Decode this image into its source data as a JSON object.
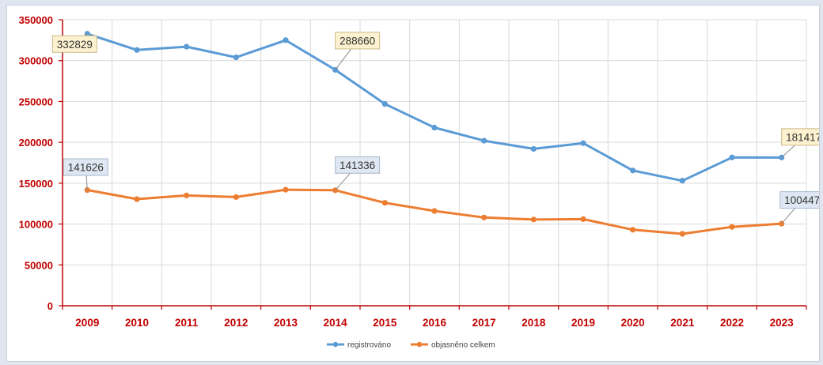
{
  "chart_data": {
    "type": "line",
    "title": "",
    "xlabel": "",
    "ylabel": "",
    "categories": [
      "2009",
      "2010",
      "2011",
      "2012",
      "2013",
      "2014",
      "2015",
      "2016",
      "2017",
      "2018",
      "2019",
      "2020",
      "2021",
      "2022",
      "2023"
    ],
    "series": [
      {
        "name": "registrováno",
        "color": "#5b9bd5",
        "values": [
          332829,
          313000,
          317000,
          304000,
          325000,
          288660,
          247000,
          218000,
          202000,
          192000,
          199000,
          165500,
          153000,
          181500,
          181417
        ]
      },
      {
        "name": "objasněno celkem",
        "color": "#ed7d31",
        "values": [
          141626,
          130500,
          135000,
          133000,
          142000,
          141336,
          126000,
          116000,
          108000,
          105500,
          106000,
          93000,
          88000,
          96500,
          100447
        ]
      }
    ],
    "ylim": [
      0,
      350000
    ],
    "yticks": [
      "0",
      "50000",
      "100000",
      "150000",
      "200000",
      "250000",
      "300000",
      "350000"
    ],
    "grid": true,
    "legend": "bottom-center",
    "data_labels": [
      {
        "series": 0,
        "index": 0,
        "text": "332829",
        "fill": "#fdf2d0",
        "stroke": "#c9b98a"
      },
      {
        "series": 0,
        "index": 5,
        "text": "288660",
        "fill": "#fdf2d0",
        "stroke": "#c9b98a"
      },
      {
        "series": 0,
        "index": 14,
        "text": "181417",
        "fill": "#fdf2d0",
        "stroke": "#c9b98a"
      },
      {
        "series": 1,
        "index": 0,
        "text": "141626",
        "fill": "#dfe7f2",
        "stroke": "#a9b8cc"
      },
      {
        "series": 1,
        "index": 5,
        "text": "141336",
        "fill": "#dfe7f2",
        "stroke": "#a9b8cc"
      },
      {
        "series": 1,
        "index": 14,
        "text": "100447",
        "fill": "#dfe7f2",
        "stroke": "#a9b8cc"
      }
    ],
    "axis_color": "#c00000",
    "grid_color": "#d9d9d9"
  }
}
